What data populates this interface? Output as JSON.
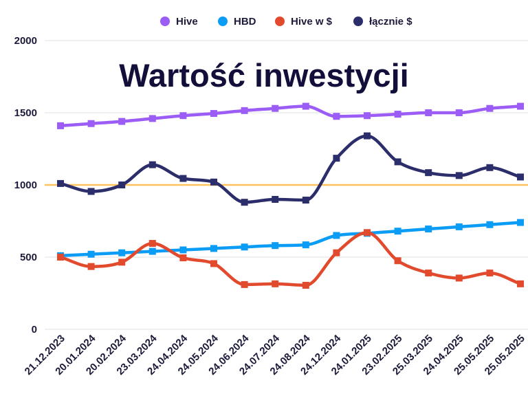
{
  "chart_data": {
    "type": "line",
    "title": "Wartość inwestycji",
    "categories": [
      "21.12.2023",
      "20.01.2024",
      "20.02.2024",
      "23.03.2024",
      "24.04.2024",
      "24.05.2024",
      "24.06.2024",
      "24.07.2024",
      "24.08.2024",
      "24.12.2024",
      "24.01.2025",
      "23.02.2025",
      "25.03.2025",
      "24.04.2025",
      "25.05.2025",
      "25.05.2025"
    ],
    "series": [
      {
        "name": "Hive",
        "color": "#9B5DF5",
        "values": [
          1410,
          1425,
          1440,
          1460,
          1480,
          1495,
          1515,
          1530,
          1545,
          1475,
          1480,
          1490,
          1500,
          1500,
          1530,
          1545
        ]
      },
      {
        "name": "HBD",
        "color": "#0B9CF5",
        "values": [
          510,
          520,
          530,
          540,
          550,
          560,
          570,
          580,
          585,
          650,
          665,
          680,
          695,
          710,
          725,
          740
        ]
      },
      {
        "name": "Hive w $",
        "color": "#E24A2E",
        "values": [
          500,
          435,
          465,
          595,
          495,
          455,
          310,
          315,
          305,
          530,
          670,
          475,
          390,
          355,
          390,
          315
        ]
      },
      {
        "name": "łącznie $",
        "color": "#2C2E6C",
        "values": [
          1010,
          955,
          1000,
          1140,
          1045,
          1020,
          880,
          900,
          895,
          1185,
          1340,
          1160,
          1085,
          1065,
          1120,
          1055
        ]
      }
    ],
    "ylim": [
      0,
      2000
    ],
    "yticks": [
      0,
      500,
      1000,
      1500,
      2000
    ],
    "reference_line": {
      "value": 1000,
      "color": "#FFC25C"
    },
    "grid": true,
    "legend_position": "top"
  }
}
